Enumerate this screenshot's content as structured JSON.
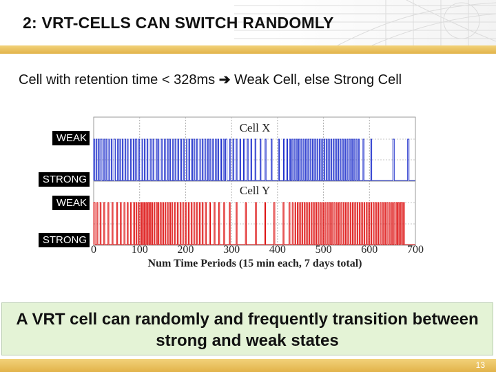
{
  "slide": {
    "title": "2: VRT-CELLS CAN SWITCH RANDOMLY",
    "subtitle_left": "Cell with retention time < 328ms",
    "subtitle_arrow": "➔",
    "subtitle_right": "Weak Cell, else Strong Cell",
    "callout": "A VRT cell can randomly and frequently transition between strong and weak states",
    "page_number": "13"
  },
  "colors": {
    "cell_x": "#2233cc",
    "cell_y": "#dd1111",
    "accent_gold": "#e6b84f",
    "callout_bg": "#e4f3d6"
  },
  "chart_data": {
    "type": "line",
    "xlabel": "Num Time Periods (15 min each, 7 days total)",
    "xlim": [
      0,
      700
    ],
    "x_ticks": [
      "0",
      "100",
      "200",
      "300",
      "400",
      "500",
      "600",
      "700"
    ],
    "grid": true,
    "state_labels": {
      "weak": "WEAK",
      "strong": "STRONG"
    },
    "series": [
      {
        "name": "Cell X",
        "weak_intervals": [
          [
            0,
            2
          ],
          [
            5,
            7
          ],
          [
            10,
            12
          ],
          [
            15,
            18
          ],
          [
            22,
            24
          ],
          [
            27,
            29
          ],
          [
            33,
            34
          ],
          [
            38,
            40
          ],
          [
            44,
            47
          ],
          [
            52,
            54
          ],
          [
            57,
            58
          ],
          [
            62,
            64
          ],
          [
            68,
            70
          ],
          [
            74,
            75
          ],
          [
            80,
            82
          ],
          [
            86,
            88
          ],
          [
            91,
            94
          ],
          [
            98,
            100
          ],
          [
            105,
            106
          ],
          [
            110,
            112
          ],
          [
            116,
            118
          ],
          [
            123,
            125
          ],
          [
            129,
            131
          ],
          [
            136,
            138
          ],
          [
            141,
            142
          ],
          [
            147,
            149
          ],
          [
            154,
            156
          ],
          [
            160,
            162
          ],
          [
            165,
            167
          ],
          [
            172,
            173
          ],
          [
            177,
            179
          ],
          [
            183,
            185
          ],
          [
            189,
            191
          ],
          [
            195,
            197
          ],
          [
            202,
            203
          ],
          [
            207,
            209
          ],
          [
            213,
            215
          ],
          [
            218,
            220
          ],
          [
            224,
            226
          ],
          [
            231,
            232
          ],
          [
            236,
            238
          ],
          [
            242,
            244
          ],
          [
            248,
            250
          ],
          [
            253,
            255
          ],
          [
            259,
            261
          ],
          [
            265,
            267
          ],
          [
            270,
            272
          ],
          [
            276,
            278
          ],
          [
            282,
            284
          ],
          [
            287,
            290
          ],
          [
            296,
            298
          ],
          [
            303,
            305
          ],
          [
            310,
            312
          ],
          [
            318,
            320
          ],
          [
            326,
            328
          ],
          [
            334,
            336
          ],
          [
            342,
            344
          ],
          [
            351,
            353
          ],
          [
            362,
            364
          ],
          [
            373,
            375
          ],
          [
            386,
            388
          ],
          [
            402,
            404
          ],
          [
            413,
            415
          ],
          [
            420,
            422
          ],
          [
            426,
            428
          ],
          [
            431,
            433
          ],
          [
            436,
            438
          ],
          [
            441,
            443
          ],
          [
            446,
            448
          ],
          [
            451,
            453
          ],
          [
            456,
            458
          ],
          [
            461,
            463
          ],
          [
            466,
            468
          ],
          [
            471,
            473
          ],
          [
            476,
            478
          ],
          [
            481,
            483
          ],
          [
            486,
            488
          ],
          [
            491,
            493
          ],
          [
            496,
            498
          ],
          [
            501,
            503
          ],
          [
            506,
            508
          ],
          [
            511,
            513
          ],
          [
            516,
            518
          ],
          [
            521,
            523
          ],
          [
            526,
            528
          ],
          [
            531,
            533
          ],
          [
            536,
            538
          ],
          [
            541,
            543
          ],
          [
            546,
            548
          ],
          [
            551,
            553
          ],
          [
            556,
            558
          ],
          [
            561,
            563
          ],
          [
            566,
            568
          ],
          [
            571,
            573
          ],
          [
            576,
            578
          ],
          [
            586,
            588
          ],
          [
            603,
            605
          ],
          [
            651,
            654
          ],
          [
            683,
            686
          ]
        ]
      },
      {
        "name": "Cell Y",
        "weak_intervals": [
          [
            0,
            3
          ],
          [
            7,
            9
          ],
          [
            14,
            16
          ],
          [
            22,
            24
          ],
          [
            31,
            33
          ],
          [
            40,
            42
          ],
          [
            50,
            52
          ],
          [
            58,
            60
          ],
          [
            66,
            68
          ],
          [
            73,
            75
          ],
          [
            80,
            82
          ],
          [
            87,
            89
          ],
          [
            92,
            94
          ],
          [
            97,
            99
          ],
          [
            102,
            104
          ],
          [
            106,
            108
          ],
          [
            110,
            112
          ],
          [
            114,
            116
          ],
          [
            118,
            120
          ],
          [
            122,
            124
          ],
          [
            126,
            128
          ],
          [
            131,
            133
          ],
          [
            136,
            138
          ],
          [
            140,
            142
          ],
          [
            145,
            147
          ],
          [
            150,
            152
          ],
          [
            155,
            157
          ],
          [
            160,
            162
          ],
          [
            165,
            167
          ],
          [
            170,
            172
          ],
          [
            176,
            178
          ],
          [
            182,
            184
          ],
          [
            188,
            190
          ],
          [
            194,
            196
          ],
          [
            200,
            202
          ],
          [
            206,
            208
          ],
          [
            212,
            214
          ],
          [
            218,
            220
          ],
          [
            224,
            226
          ],
          [
            230,
            232
          ],
          [
            236,
            238
          ],
          [
            243,
            245
          ],
          [
            252,
            254
          ],
          [
            262,
            264
          ],
          [
            272,
            274
          ],
          [
            283,
            285
          ],
          [
            295,
            297
          ],
          [
            310,
            312
          ],
          [
            330,
            332
          ],
          [
            352,
            354
          ],
          [
            372,
            374
          ],
          [
            392,
            394
          ],
          [
            412,
            414
          ],
          [
            425,
            427
          ],
          [
            432,
            434
          ],
          [
            438,
            440
          ],
          [
            443,
            445
          ],
          [
            448,
            450
          ],
          [
            453,
            455
          ],
          [
            458,
            460
          ],
          [
            463,
            465
          ],
          [
            468,
            470
          ],
          [
            473,
            475
          ],
          [
            478,
            480
          ],
          [
            483,
            485
          ],
          [
            488,
            490
          ],
          [
            493,
            495
          ],
          [
            498,
            500
          ],
          [
            503,
            505
          ],
          [
            508,
            510
          ],
          [
            513,
            515
          ],
          [
            518,
            520
          ],
          [
            523,
            525
          ],
          [
            528,
            530
          ],
          [
            533,
            535
          ],
          [
            538,
            540
          ],
          [
            543,
            545
          ],
          [
            548,
            550
          ],
          [
            553,
            555
          ],
          [
            558,
            560
          ],
          [
            563,
            565
          ],
          [
            568,
            570
          ],
          [
            573,
            575
          ],
          [
            578,
            580
          ],
          [
            583,
            585
          ],
          [
            588,
            590
          ],
          [
            593,
            595
          ],
          [
            598,
            600
          ],
          [
            603,
            605
          ],
          [
            608,
            610
          ],
          [
            613,
            615
          ],
          [
            618,
            620
          ],
          [
            623,
            625
          ],
          [
            628,
            630
          ],
          [
            633,
            635
          ],
          [
            638,
            640
          ],
          [
            643,
            645
          ],
          [
            648,
            650
          ],
          [
            653,
            655
          ],
          [
            658,
            660
          ],
          [
            662,
            664
          ],
          [
            666,
            668
          ],
          [
            669,
            672
          ],
          [
            674,
            676
          ]
        ]
      }
    ]
  }
}
